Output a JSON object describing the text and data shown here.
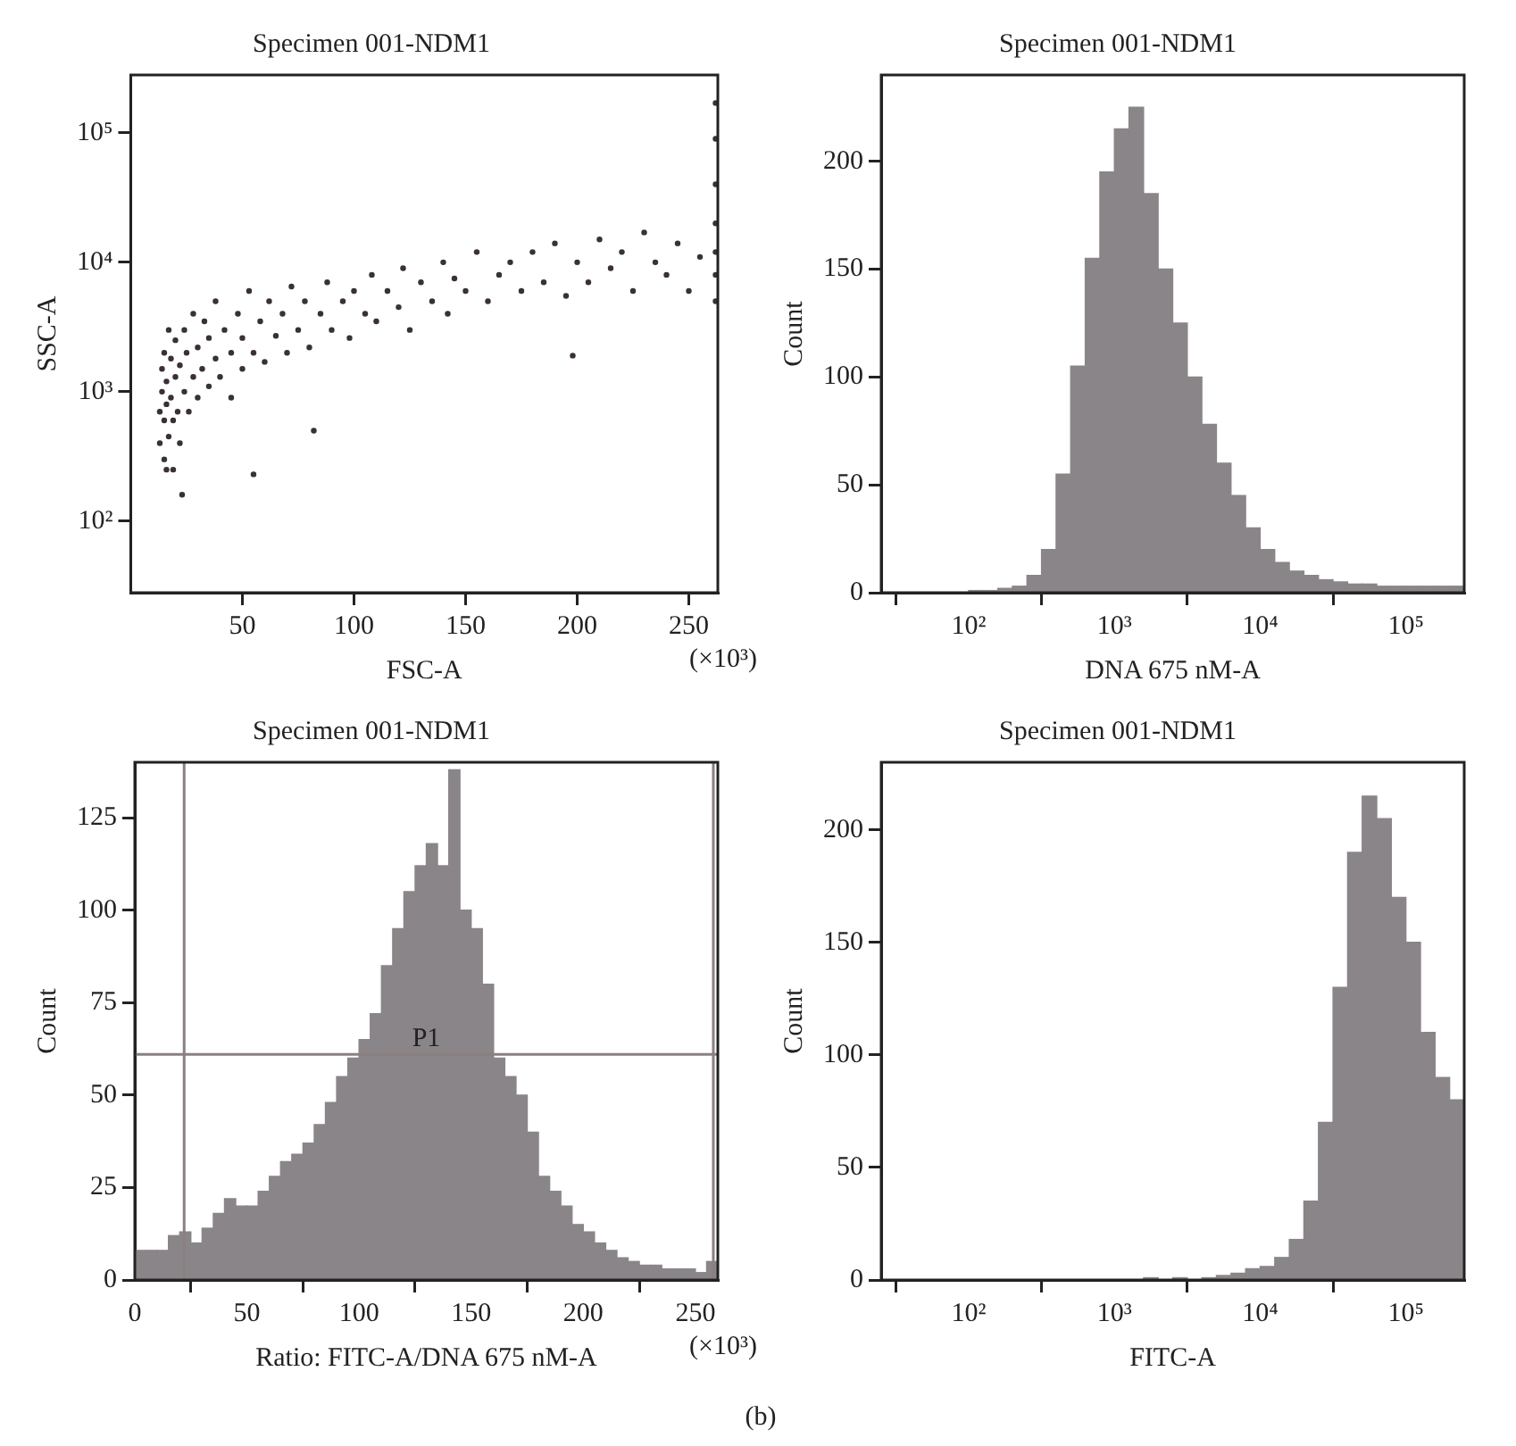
{
  "chart_data": [
    {
      "type": "scatter",
      "title": "Specimen 001-NDM1",
      "xlabel": "FSC-A",
      "ylabel": "SSC-A",
      "log": "y",
      "grid": false,
      "legend": false,
      "marker": "circle",
      "color": "#3a3038",
      "x": [
        13,
        13,
        14,
        14,
        15,
        15,
        15,
        16,
        16,
        16,
        17,
        17,
        18,
        18,
        19,
        19,
        20,
        20,
        21,
        22,
        22,
        23,
        24,
        24,
        25,
        26,
        28,
        28,
        30,
        30,
        32,
        33,
        35,
        35,
        38,
        38,
        40,
        42,
        45,
        45,
        48,
        50,
        50,
        53,
        55,
        55,
        58,
        60,
        62,
        65,
        68,
        70,
        72,
        75,
        78,
        80,
        82,
        85,
        88,
        90,
        95,
        98,
        100,
        105,
        108,
        110,
        115,
        120,
        122,
        125,
        130,
        135,
        140,
        142,
        145,
        150,
        155,
        160,
        165,
        170,
        175,
        180,
        185,
        190,
        195,
        198,
        200,
        205,
        210,
        215,
        220,
        225,
        230,
        235,
        240,
        245,
        250,
        255,
        262,
        262,
        262,
        262,
        262,
        262,
        262
      ],
      "values": [
        400,
        700,
        1000,
        1500,
        300,
        600,
        2000,
        250,
        800,
        1200,
        450,
        3000,
        900,
        1800,
        250,
        600,
        1300,
        2500,
        700,
        400,
        1600,
        160,
        1000,
        3000,
        2000,
        700,
        1300,
        4000,
        2200,
        900,
        1500,
        3500,
        1100,
        2600,
        1800,
        5000,
        1300,
        3000,
        2000,
        900,
        4000,
        1500,
        2600,
        6000,
        230,
        2000,
        3500,
        1700,
        5000,
        2700,
        4000,
        2000,
        6500,
        3000,
        5000,
        2200,
        500,
        4000,
        7000,
        3000,
        5000,
        2600,
        6000,
        4000,
        8000,
        3500,
        6000,
        4500,
        9000,
        3000,
        7000,
        5000,
        10000,
        4000,
        7500,
        6000,
        12000,
        5000,
        8000,
        10000,
        6000,
        12000,
        7000,
        14000,
        5500,
        1900,
        10000,
        7000,
        15000,
        9000,
        12000,
        6000,
        17000,
        10000,
        8000,
        14000,
        6000,
        11000,
        5000,
        8000,
        12000,
        20000,
        40000,
        90000,
        170000
      ],
      "xlim": [
        0,
        263
      ],
      "xticks": [
        50,
        100,
        150,
        200,
        250
      ],
      "ylim": [
        28,
        280000
      ],
      "yticks": [
        {
          "value": 100,
          "label": "10²"
        },
        {
          "value": 1000,
          "label": "10³"
        },
        {
          "value": 10000,
          "label": "10⁴"
        },
        {
          "value": 100000,
          "label": "10⁵"
        }
      ],
      "annotations": [
        "(×10³)"
      ]
    },
    {
      "type": "histogram",
      "title": "Specimen 001-NDM1",
      "xlabel": "DNA 675 nM-A",
      "ylabel": "Count",
      "log": "x",
      "grid": false,
      "legend": false,
      "color": "#8a8588",
      "bins": [
        25.1,
        31.6,
        39.8,
        50.1,
        63.1,
        79.4,
        100,
        126,
        158,
        200,
        251,
        316,
        398,
        501,
        631,
        794,
        1000,
        1259,
        1585,
        1995,
        2512,
        3162,
        3981,
        5012,
        6310,
        7943,
        10000,
        12589,
        15849,
        19953,
        25119,
        31623,
        39811,
        50119,
        63096,
        79433,
        100000,
        125893,
        158489,
        199526,
        251189
      ],
      "values": [
        0,
        0,
        0,
        0,
        0,
        0,
        1,
        1,
        2,
        3,
        8,
        20,
        55,
        105,
        155,
        195,
        215,
        225,
        185,
        150,
        125,
        100,
        78,
        60,
        45,
        30,
        20,
        14,
        10,
        8,
        6,
        5,
        4,
        4,
        3,
        3,
        3,
        3,
        3,
        3
      ],
      "xlim": [
        25.1,
        251189
      ],
      "xticks": [
        {
          "value": 100,
          "label": "10²"
        },
        {
          "value": 1000,
          "label": "10³"
        },
        {
          "value": 10000,
          "label": "10⁴"
        },
        {
          "value": 100000,
          "label": "10⁵"
        }
      ],
      "ylim": [
        0,
        240
      ],
      "yticks": [
        0,
        50,
        100,
        150,
        200
      ]
    },
    {
      "type": "histogram",
      "title": "Specimen 001-NDM1",
      "xlabel": "Ratio: FITC-A/DNA 675 nM-A",
      "ylabel": "Count",
      "grid": false,
      "legend": false,
      "color": "#8a8588",
      "bins": [
        0,
        5,
        10,
        15,
        20,
        25,
        30,
        35,
        40,
        45,
        50,
        55,
        60,
        65,
        70,
        75,
        80,
        85,
        90,
        95,
        100,
        105,
        110,
        115,
        120,
        125,
        130,
        135,
        140,
        145,
        150,
        155,
        160,
        165,
        170,
        175,
        180,
        185,
        190,
        195,
        200,
        205,
        210,
        215,
        220,
        225,
        230,
        235,
        240,
        245,
        250,
        255,
        260
      ],
      "values": [
        8,
        8,
        8,
        12,
        13,
        10,
        14,
        18,
        22,
        20,
        20,
        24,
        28,
        32,
        34,
        37,
        42,
        48,
        55,
        60,
        65,
        72,
        85,
        95,
        105,
        112,
        118,
        112,
        138,
        100,
        95,
        80,
        60,
        55,
        50,
        40,
        28,
        24,
        20,
        15,
        13,
        10,
        8,
        6,
        5,
        4,
        4,
        3,
        3,
        3,
        2,
        5
      ],
      "xlim": [
        0,
        260
      ],
      "xticks": [
        0,
        50,
        100,
        150,
        200,
        250
      ],
      "ylim": [
        0,
        140
      ],
      "yticks": [
        0,
        25,
        50,
        75,
        100,
        125
      ],
      "ref_lines": [
        {
          "axis": "x",
          "value": 22,
          "color": "#8a8080"
        },
        {
          "axis": "x",
          "value": 258,
          "color": "#8a8080"
        },
        {
          "axis": "y",
          "value": 61,
          "label": "P1",
          "color": "#8a8080"
        }
      ],
      "annotations": [
        "(×10³)",
        "(b)"
      ]
    },
    {
      "type": "histogram",
      "title": "Specimen 001-NDM1",
      "xlabel": "FITC-A",
      "ylabel": "Count",
      "log": "x",
      "grid": false,
      "legend": false,
      "color": "#8a8588",
      "bins": [
        25.1,
        31.6,
        39.8,
        50.1,
        63.1,
        79.4,
        100,
        126,
        158,
        200,
        251,
        316,
        398,
        501,
        631,
        794,
        1000,
        1259,
        1585,
        1995,
        2512,
        3162,
        3981,
        5012,
        6310,
        7943,
        10000,
        12589,
        15849,
        19953,
        25119,
        31623,
        39811,
        50119,
        63096,
        79433,
        100000,
        125893,
        158489,
        199526,
        251189
      ],
      "values": [
        0,
        0,
        0,
        0,
        0,
        0,
        0,
        0,
        0,
        0,
        0,
        0,
        0,
        0,
        0,
        0,
        0,
        0,
        1,
        0,
        1,
        0,
        1,
        2,
        3,
        5,
        6,
        10,
        18,
        35,
        70,
        130,
        190,
        215,
        205,
        170,
        150,
        110,
        90,
        80
      ],
      "xlim": [
        25.1,
        251189
      ],
      "xticks": [
        {
          "value": 100,
          "label": "10²"
        },
        {
          "value": 1000,
          "label": "10³"
        },
        {
          "value": 10000,
          "label": "10⁴"
        },
        {
          "value": 100000,
          "label": "10⁵"
        }
      ],
      "ylim": [
        0,
        230
      ],
      "yticks": [
        0,
        50,
        100,
        150,
        200
      ]
    }
  ]
}
